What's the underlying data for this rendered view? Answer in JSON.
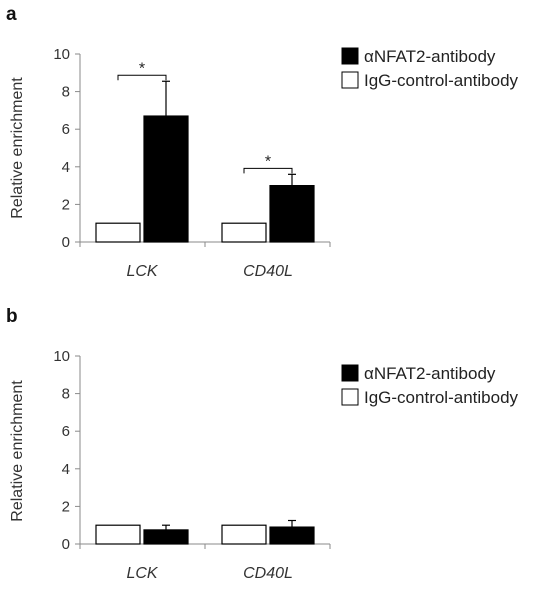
{
  "chart_data": [
    {
      "type": "bar",
      "panel": "a",
      "ylabel": "Relative enrichment",
      "ylim": [
        0,
        10
      ],
      "yticks": [
        0,
        2,
        4,
        6,
        8,
        10
      ],
      "categories": [
        "LCK",
        "CD40L"
      ],
      "series": [
        {
          "name": "IgG-control-antibody",
          "values": [
            1,
            1
          ],
          "errors": [
            0,
            0
          ],
          "fill": "#ffffff"
        },
        {
          "name": "αNFAT2-antibody",
          "values": [
            6.7,
            3.0
          ],
          "errors": [
            1.85,
            0.6
          ],
          "fill": "#000000"
        }
      ],
      "significance": [
        "*",
        "*"
      ],
      "legend": "top-right"
    },
    {
      "type": "bar",
      "panel": "b",
      "ylabel": "Relative enrichment",
      "ylim": [
        0,
        10
      ],
      "yticks": [
        0,
        2,
        4,
        6,
        8,
        10
      ],
      "categories": [
        "LCK",
        "CD40L"
      ],
      "series": [
        {
          "name": "IgG-control-antibody",
          "values": [
            1,
            1
          ],
          "errors": [
            0,
            0
          ],
          "fill": "#ffffff"
        },
        {
          "name": "αNFAT2-antibody",
          "values": [
            0.75,
            0.9
          ],
          "errors": [
            0.25,
            0.35
          ],
          "fill": "#000000"
        }
      ],
      "significance": [],
      "legend": "top-right"
    }
  ]
}
